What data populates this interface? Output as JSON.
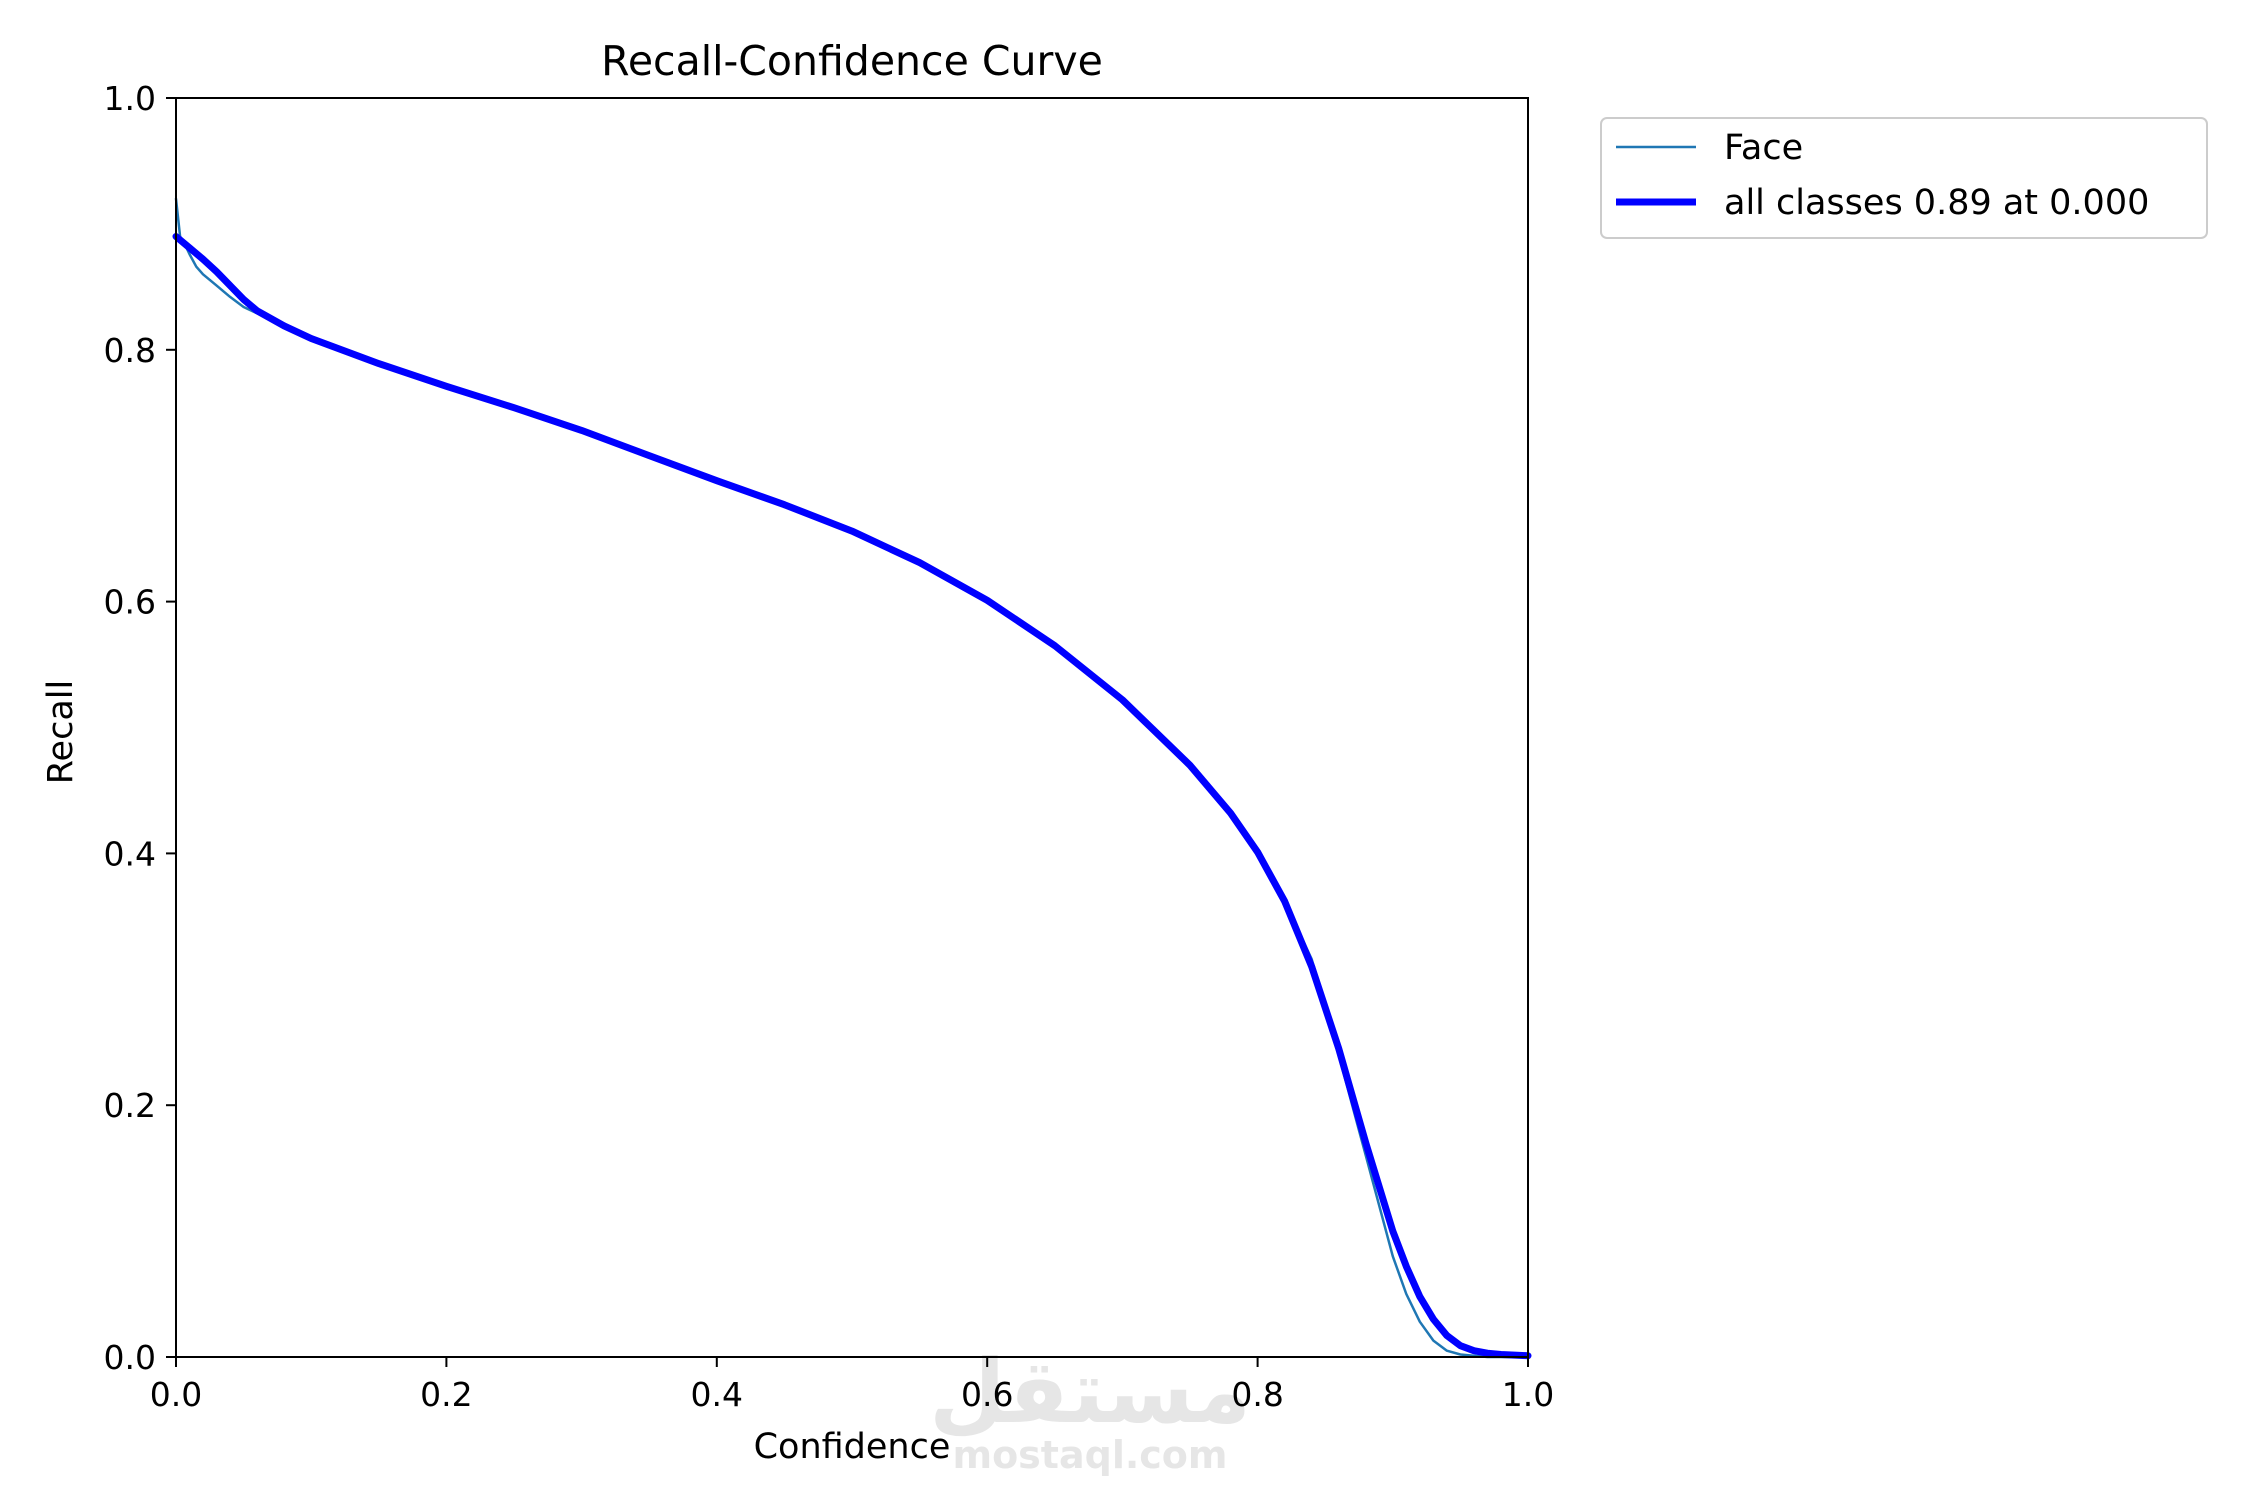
{
  "chart_data": {
    "type": "line",
    "title": "Recall-Confidence Curve",
    "xlabel": "Confidence",
    "ylabel": "Recall",
    "xlim": [
      0,
      1
    ],
    "ylim": [
      0,
      1
    ],
    "xticks": [
      "0.0",
      "0.2",
      "0.4",
      "0.6",
      "0.8",
      "1.0"
    ],
    "yticks": [
      "0.0",
      "0.2",
      "0.4",
      "0.6",
      "0.8",
      "1.0"
    ],
    "grid": false,
    "legend_position": "outside-top-right",
    "series": [
      {
        "name": "Face",
        "color": "#1f77b4",
        "line_width": "thin",
        "x": [
          0.0,
          0.003,
          0.006,
          0.01,
          0.015,
          0.02,
          0.03,
          0.04,
          0.05,
          0.06,
          0.08,
          0.1,
          0.15,
          0.2,
          0.25,
          0.3,
          0.35,
          0.4,
          0.45,
          0.5,
          0.55,
          0.6,
          0.65,
          0.7,
          0.75,
          0.78,
          0.8,
          0.82,
          0.84,
          0.85,
          0.86,
          0.87,
          0.88,
          0.89,
          0.9,
          0.91,
          0.92,
          0.93,
          0.94,
          0.95,
          0.96,
          0.97,
          0.98,
          0.99,
          1.0
        ],
        "y": [
          0.92,
          0.89,
          0.885,
          0.876,
          0.866,
          0.86,
          0.851,
          0.842,
          0.834,
          0.829,
          0.819,
          0.809,
          0.789,
          0.771,
          0.754,
          0.736,
          0.716,
          0.696,
          0.677,
          0.656,
          0.631,
          0.601,
          0.565,
          0.522,
          0.47,
          0.432,
          0.401,
          0.362,
          0.316,
          0.28,
          0.24,
          0.2,
          0.16,
          0.12,
          0.08,
          0.05,
          0.028,
          0.013,
          0.005,
          0.002,
          0.001,
          0.0,
          0.0,
          0.0,
          0.0
        ]
      },
      {
        "name": "all classes 0.89 at 0.000",
        "color": "#0000ff",
        "line_width": "thick",
        "x": [
          0.0,
          0.01,
          0.02,
          0.03,
          0.04,
          0.05,
          0.06,
          0.08,
          0.1,
          0.15,
          0.2,
          0.25,
          0.3,
          0.35,
          0.4,
          0.45,
          0.5,
          0.55,
          0.6,
          0.65,
          0.7,
          0.75,
          0.78,
          0.8,
          0.82,
          0.84,
          0.86,
          0.88,
          0.9,
          0.91,
          0.92,
          0.93,
          0.94,
          0.95,
          0.96,
          0.97,
          0.98,
          0.99,
          1.0
        ],
        "y": [
          0.89,
          0.881,
          0.872,
          0.862,
          0.851,
          0.84,
          0.831,
          0.819,
          0.809,
          0.789,
          0.771,
          0.754,
          0.736,
          0.716,
          0.696,
          0.677,
          0.656,
          0.631,
          0.601,
          0.565,
          0.522,
          0.47,
          0.432,
          0.401,
          0.362,
          0.31,
          0.245,
          0.17,
          0.1,
          0.072,
          0.048,
          0.03,
          0.017,
          0.009,
          0.005,
          0.003,
          0.002,
          0.0015,
          0.001
        ]
      }
    ]
  },
  "watermark": {
    "main": "مستقل",
    "sub": "mostaql.com"
  }
}
